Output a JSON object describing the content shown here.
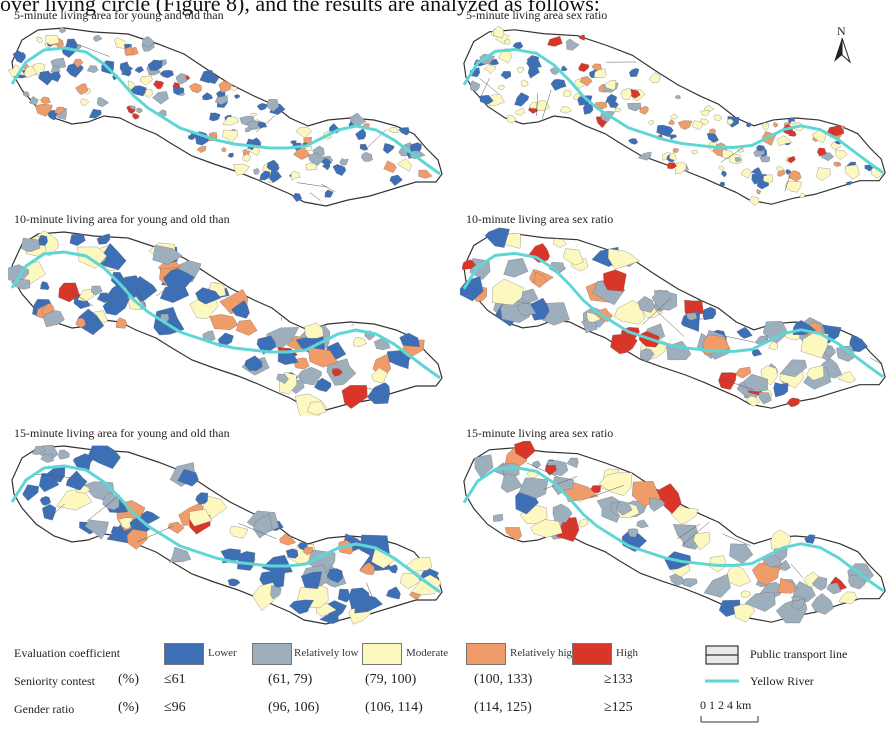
{
  "header_fragment": "over living circle (Figure 8), and the results are analyzed as follows:",
  "north_label": "N",
  "colors": {
    "lower": "#3d6fb6",
    "relatively_low": "#9daebd",
    "moderate": "#fdf7c0",
    "relatively_high": "#ef9b6a",
    "high": "#d93529",
    "river": "#5fd6d6",
    "outline": "#333333"
  },
  "panels": [
    {
      "title": "5-minute living area for young and old than"
    },
    {
      "title": "5-minute living area sex ratio"
    },
    {
      "title": "10-minute living area for young and old than"
    },
    {
      "title": "10-minute living area sex ratio"
    },
    {
      "title": "15-minute living area for young and old than"
    },
    {
      "title": "15-minute living area sex ratio"
    }
  ],
  "legend": {
    "heading": "Evaluation coefficient",
    "classes": [
      "Lower",
      "Relatively low",
      "Moderate",
      "Relatively high",
      "High"
    ],
    "seniority": {
      "label": "Seniority contest",
      "unit": "(%)",
      "values": [
        "≤61",
        "(61, 79)",
        "(79, 100)",
        "(100, 133)",
        "≥133"
      ]
    },
    "gender": {
      "label": "Gender ratio",
      "unit": "(%)",
      "values": [
        "≤96",
        "(96, 106)",
        "(106, 114)",
        "(114, 125)",
        "≥125"
      ]
    },
    "transport": "Public transport line",
    "river": "Yellow River",
    "scale_ticks": "0  1  2     4 km"
  }
}
